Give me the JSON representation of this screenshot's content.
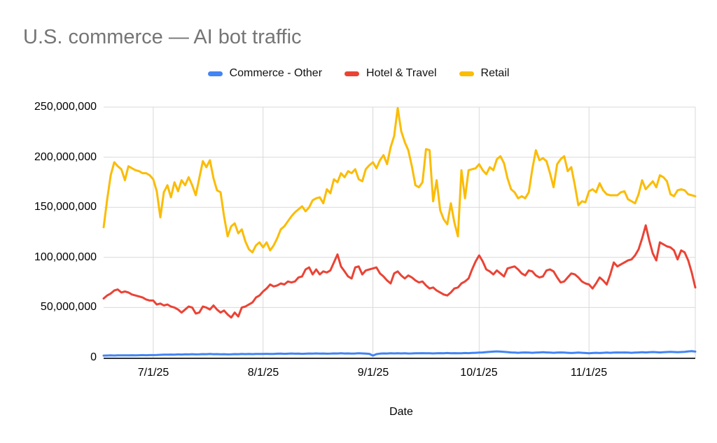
{
  "header": {
    "title": "U.S. commerce — AI bot traffic",
    "title_color": "#757575"
  },
  "legend": {
    "items": [
      {
        "label": "Commerce - Other",
        "color": "#4285F4"
      },
      {
        "label": "Hotel & Travel",
        "color": "#EA4335"
      },
      {
        "label": "Retail",
        "color": "#FBBC04"
      }
    ]
  },
  "axes": {
    "x_title": "Date",
    "y_tick_labels": [
      "250,000,000",
      "200,000,000",
      "150,000,000",
      "100,000,000",
      "50,000,000",
      "0"
    ],
    "x_tick_labels": [
      "7/1/25",
      "8/1/25",
      "9/1/25",
      "10/1/25",
      "11/1/25"
    ]
  },
  "chart_data": {
    "type": "line",
    "title": "U.S. commerce — AI bot traffic",
    "xlabel": "Date",
    "ylabel": "",
    "ylim": [
      0,
      250000000
    ],
    "grid": true,
    "legend_position": "top-center",
    "x_unit": "day",
    "x_start": "6/17/25",
    "x_end": "12/1/25",
    "x_tick_labels": [
      "7/1/25",
      "8/1/25",
      "9/1/25",
      "10/1/25",
      "11/1/25"
    ],
    "x_tick_day_indices": [
      14,
      45,
      76,
      106,
      137
    ],
    "x_gridline_day_indices": [
      14,
      45,
      76,
      106,
      137,
      167
    ],
    "y_tick_values_millions": [
      0,
      50,
      100,
      150,
      200,
      250
    ],
    "values_scale": 1000000,
    "gridline_color": "#d9d9d9",
    "axis_line_color": "#333333",
    "series": [
      {
        "name": "Commerce - Other",
        "color": "#4285F4",
        "values_millions": [
          2.0,
          2.1,
          2.2,
          2.1,
          2.2,
          2.3,
          2.2,
          2.3,
          2.4,
          2.3,
          2.4,
          2.5,
          2.4,
          2.5,
          2.5,
          2.6,
          2.8,
          3.0,
          2.9,
          3.1,
          3.0,
          3.2,
          3.1,
          3.3,
          3.2,
          3.4,
          3.2,
          3.3,
          3.5,
          3.4,
          3.6,
          3.4,
          3.5,
          3.3,
          3.4,
          3.2,
          3.3,
          3.5,
          3.4,
          3.6,
          3.5,
          3.7,
          3.5,
          3.6,
          3.7,
          3.6,
          3.8,
          3.6,
          3.7,
          3.9,
          4.0,
          3.8,
          3.9,
          4.1,
          3.9,
          4.0,
          3.8,
          3.9,
          4.1,
          4.0,
          4.2,
          4.0,
          4.1,
          3.9,
          4.0,
          4.2,
          4.1,
          4.3,
          4.1,
          4.2,
          4.0,
          4.1,
          4.3,
          4.2,
          4.0,
          3.8,
          2.0,
          3.5,
          4.0,
          4.2,
          4.1,
          4.3,
          4.2,
          4.4,
          4.2,
          4.3,
          4.1,
          4.2,
          4.4,
          4.3,
          4.5,
          4.3,
          4.4,
          4.2,
          4.3,
          4.5,
          4.4,
          4.6,
          4.4,
          4.5,
          4.3,
          4.4,
          4.6,
          4.5,
          4.7,
          4.8,
          5.0,
          5.2,
          5.5,
          5.8,
          6.0,
          6.2,
          6.0,
          5.8,
          5.5,
          5.2,
          5.0,
          4.8,
          5.0,
          5.2,
          5.0,
          4.8,
          5.0,
          5.2,
          5.4,
          5.2,
          5.0,
          4.8,
          5.0,
          5.2,
          5.0,
          4.8,
          4.6,
          4.8,
          5.0,
          4.8,
          4.6,
          4.4,
          4.6,
          4.8,
          4.6,
          4.8,
          5.0,
          4.8,
          5.0,
          5.2,
          5.0,
          5.2,
          5.0,
          4.8,
          5.0,
          5.2,
          5.4,
          5.2,
          5.4,
          5.6,
          5.4,
          5.2,
          5.4,
          5.6,
          5.8,
          5.6,
          5.4,
          5.6,
          5.8,
          6.2,
          6.4,
          6.0
        ]
      },
      {
        "name": "Hotel & Travel",
        "color": "#EA4335",
        "values_millions": [
          59,
          62,
          64,
          67,
          68,
          65,
          66,
          65,
          63,
          62,
          61,
          60,
          58,
          57,
          57,
          53,
          54,
          52,
          53,
          51,
          50,
          48,
          45,
          48,
          51,
          50,
          44,
          45,
          51,
          50,
          48,
          52,
          48,
          45,
          47,
          43,
          40,
          45,
          41,
          50,
          51,
          53,
          55,
          60,
          62,
          66,
          69,
          73,
          71,
          72,
          74,
          73,
          76,
          75,
          76,
          80,
          81,
          88,
          90,
          83,
          88,
          83,
          86,
          85,
          87,
          95,
          103,
          91,
          86,
          81,
          79,
          90,
          91,
          83,
          87,
          88,
          89,
          90,
          84,
          81,
          77,
          74,
          84,
          86,
          82,
          79,
          82,
          80,
          77,
          75,
          76,
          72,
          69,
          70,
          67,
          65,
          63,
          62,
          65,
          69,
          70,
          74,
          76,
          79,
          88,
          96,
          102,
          96,
          88,
          86,
          83,
          87,
          84,
          81,
          89,
          90,
          91,
          88,
          84,
          82,
          87,
          86,
          82,
          80,
          81,
          87,
          88,
          86,
          80,
          75,
          76,
          80,
          84,
          83,
          80,
          76,
          74,
          73,
          69,
          74,
          80,
          77,
          73,
          83,
          95,
          91,
          93,
          95,
          97,
          98,
          102,
          108,
          119,
          132,
          117,
          104,
          97,
          115,
          113,
          111,
          110,
          107,
          98,
          107,
          105,
          97,
          85,
          70
        ]
      },
      {
        "name": "Retail",
        "color": "#FBBC04",
        "values_millions": [
          130,
          158,
          182,
          195,
          191,
          188,
          177,
          191,
          189,
          187,
          186,
          184,
          184,
          182,
          178,
          166,
          140,
          165,
          172,
          160,
          175,
          166,
          177,
          172,
          180,
          172,
          162,
          179,
          196,
          190,
          197,
          179,
          167,
          165,
          141,
          121,
          131,
          134,
          124,
          128,
          116,
          108,
          105,
          112,
          115,
          110,
          115,
          107,
          112,
          119,
          128,
          131,
          136,
          141,
          145,
          148,
          151,
          146,
          150,
          157,
          159,
          160,
          154,
          168,
          164,
          178,
          175,
          184,
          180,
          186,
          184,
          188,
          178,
          176,
          188,
          192,
          195,
          189,
          197,
          202,
          193,
          210,
          221,
          249,
          226,
          215,
          207,
          191,
          172,
          170,
          175,
          208,
          207,
          156,
          177,
          147,
          138,
          133,
          154,
          135,
          121,
          187,
          159,
          187,
          188,
          189,
          193,
          187,
          183,
          190,
          187,
          198,
          201,
          194,
          179,
          168,
          165,
          159,
          161,
          159,
          165,
          188,
          207,
          197,
          199,
          196,
          184,
          170,
          193,
          198,
          201,
          186,
          190,
          172,
          152,
          156,
          155,
          166,
          168,
          165,
          174,
          167,
          163,
          162,
          162,
          162,
          165,
          166,
          158,
          156,
          154,
          163,
          177,
          168,
          172,
          176,
          170,
          182,
          180,
          176,
          163,
          161,
          167,
          168,
          167,
          163,
          162,
          161
        ]
      }
    ]
  }
}
